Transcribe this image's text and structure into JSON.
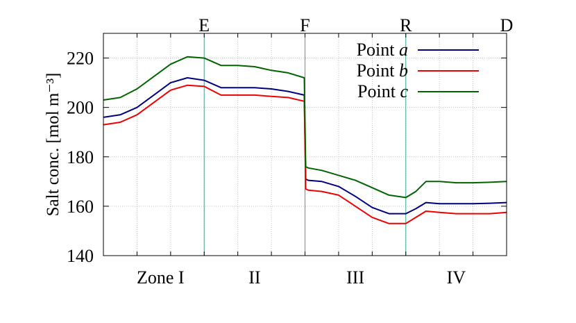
{
  "chart_data": {
    "type": "line",
    "title": "",
    "xlabel": "",
    "ylabel": "Salt conc. [mol m⁻³]",
    "ylim": [
      140,
      230
    ],
    "yticks": [
      140,
      160,
      180,
      200,
      220
    ],
    "xlim": [
      0,
      12
    ],
    "grid": true,
    "legend_position": "top-right",
    "boundaries": [
      {
        "label": "E",
        "x": 3
      },
      {
        "label": "F",
        "x": 6
      },
      {
        "label": "R",
        "x": 9
      },
      {
        "label": "D",
        "x": 12
      }
    ],
    "boundary_color": "#3aa88a",
    "zones": [
      {
        "label": "Zone I",
        "x": 1.7
      },
      {
        "label": "II",
        "x": 4.5
      },
      {
        "label": "III",
        "x": 7.5
      },
      {
        "label": "IV",
        "x": 10.5
      }
    ],
    "series": [
      {
        "name": "Point a",
        "color": "#00007f",
        "x": [
          0,
          0.5,
          1,
          1.5,
          2,
          2.5,
          3,
          3.5,
          4,
          4.5,
          5,
          5.5,
          5.98,
          6.02,
          6.1,
          6.5,
          7,
          7.5,
          8,
          8.5,
          9,
          9.3,
          9.6,
          10,
          10.5,
          11,
          11.5,
          12
        ],
        "y": [
          196,
          197,
          200,
          205,
          210,
          212,
          211,
          208,
          208,
          208,
          207.5,
          206.5,
          205,
          171,
          170.5,
          170,
          168,
          164,
          159.5,
          157,
          157,
          159,
          161.5,
          161,
          161,
          161,
          161.2,
          161.5
        ]
      },
      {
        "name": "Point b",
        "color": "#ee0000",
        "x": [
          0,
          0.5,
          1,
          1.5,
          2,
          2.5,
          3,
          3.5,
          4,
          4.5,
          5,
          5.5,
          5.98,
          6.02,
          6.1,
          6.5,
          7,
          7.5,
          8,
          8.5,
          9,
          9.3,
          9.6,
          10,
          10.5,
          11,
          11.5,
          12
        ],
        "y": [
          193,
          194,
          197,
          202,
          207,
          209,
          208.5,
          205,
          205,
          205,
          204.5,
          204,
          202.5,
          167,
          166.5,
          166,
          164.5,
          160,
          155.5,
          153,
          153,
          155.5,
          158,
          157.5,
          157,
          157,
          157,
          157.5
        ]
      },
      {
        "name": "Point c",
        "color": "#006400",
        "x": [
          0,
          0.5,
          1,
          1.5,
          2,
          2.5,
          3,
          3.5,
          4,
          4.5,
          5,
          5.5,
          5.98,
          6.02,
          6.1,
          6.5,
          7,
          7.5,
          8,
          8.5,
          9,
          9.3,
          9.6,
          10,
          10.5,
          11,
          11.5,
          12
        ],
        "y": [
          203,
          204,
          207.5,
          212.5,
          217.5,
          220.5,
          220,
          217,
          217,
          216.5,
          215,
          214,
          212,
          176,
          175.5,
          174.5,
          172.5,
          170.5,
          167.5,
          164.5,
          163.5,
          166,
          170,
          170,
          169.5,
          169.5,
          169.7,
          170
        ]
      }
    ]
  }
}
